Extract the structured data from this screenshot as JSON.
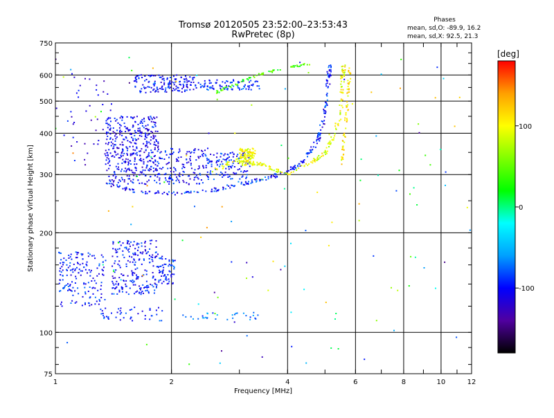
{
  "chart_data": {
    "type": "scatter",
    "title": "Tromsø 20120505 23:52:00–23:53:43",
    "subtitle": "RwPretec (8p)",
    "xlabel": "Frequency [MHz]",
    "ylabel": "Stationary phase Virtual Height [km]",
    "x_scale": "log",
    "y_scale": "log",
    "xlim": [
      1,
      12
    ],
    "ylim": [
      75,
      750
    ],
    "xticks": [
      1,
      2,
      4,
      6,
      8,
      10,
      12
    ],
    "yticks": [
      75,
      100,
      200,
      300,
      400,
      500,
      600,
      750
    ],
    "x_grid": [
      2,
      4,
      6,
      8,
      10
    ],
    "y_grid": [
      100,
      200,
      300,
      400,
      500,
      600
    ],
    "info": {
      "heading": "Phases",
      "line1": "mean, sd,O:  -89.9, 16.2",
      "line2": "mean, sd,X:  92.5, 21.3"
    },
    "colorbar": {
      "label": "[deg]",
      "range": [
        -180,
        180
      ],
      "ticks": [
        100,
        0,
        -100
      ],
      "colors": [
        "#000000",
        "#5000a0",
        "#0000ff",
        "#00a0ff",
        "#00ffff",
        "#00ff00",
        "#80ff00",
        "#ffff00",
        "#ffa000",
        "#ff0000"
      ]
    },
    "clusters": [
      {
        "x": [
          1.02,
          1.35
        ],
        "y": [
          120,
          175
        ],
        "phase": -95,
        "count": 170
      },
      {
        "x": [
          1.4,
          1.85
        ],
        "y": [
          130,
          190
        ],
        "phase": -100,
        "count": 220
      },
      {
        "x": [
          1.85,
          2.05
        ],
        "y": [
          140,
          170
        ],
        "phase": -90,
        "count": 60
      },
      {
        "x": [
          1.3,
          1.9
        ],
        "y": [
          108,
          120
        ],
        "phase": -90,
        "count": 45
      },
      {
        "x": [
          2.1,
          3.6
        ],
        "y": [
          109,
          115
        ],
        "phase": -70,
        "count": 30
      },
      {
        "x": [
          1.35,
          1.85
        ],
        "y": [
          280,
          450
        ],
        "phase": -105,
        "count": 420
      },
      {
        "x": [
          1.85,
          2.5
        ],
        "y": [
          280,
          360
        ],
        "phase": -100,
        "count": 160
      },
      {
        "x": [
          2.5,
          3.2
        ],
        "y": [
          290,
          350
        ],
        "phase": -95,
        "count": 110
      },
      {
        "x": [
          3.0,
          3.3
        ],
        "y": [
          320,
          360
        ],
        "phase": 100,
        "count": 120
      },
      {
        "x": [
          1.6,
          2.3
        ],
        "y": [
          530,
          600
        ],
        "phase": -100,
        "count": 150
      },
      {
        "x": [
          2.3,
          3.4
        ],
        "y": [
          540,
          580
        ],
        "phase": -90,
        "count": 90
      },
      {
        "x": [
          1.1,
          1.4
        ],
        "y": [
          320,
          600
        ],
        "phase": -110,
        "count": 40
      },
      {
        "x": [
          1.0,
          12.0
        ],
        "y": [
          80,
          680
        ],
        "phase": 20,
        "count": 140
      }
    ],
    "traces": [
      {
        "points": [
          [
            1.38,
            280
          ],
          [
            1.6,
            267
          ],
          [
            2.0,
            263
          ],
          [
            2.5,
            268
          ],
          [
            3.0,
            280
          ],
          [
            3.5,
            292
          ],
          [
            4.0,
            305
          ],
          [
            4.4,
            330
          ],
          [
            4.8,
            380
          ],
          [
            5.0,
            460
          ],
          [
            5.1,
            580
          ],
          [
            5.15,
            650
          ]
        ],
        "phase": -95,
        "count": 260,
        "spread": 0.012
      },
      {
        "points": [
          [
            2.6,
            310
          ],
          [
            3.0,
            335
          ],
          [
            3.5,
            320
          ],
          [
            4.0,
            300
          ],
          [
            4.5,
            320
          ],
          [
            5.0,
            350
          ],
          [
            5.3,
            400
          ],
          [
            5.5,
            470
          ],
          [
            5.55,
            580
          ],
          [
            5.6,
            640
          ]
        ],
        "phase": 95,
        "count": 180,
        "spread": 0.012
      },
      {
        "points": [
          [
            5.5,
            320
          ],
          [
            5.65,
            420
          ],
          [
            5.75,
            520
          ],
          [
            5.8,
            640
          ]
        ],
        "phase": 110,
        "count": 60,
        "spread": 0.008
      },
      {
        "points": [
          [
            2.6,
            530
          ],
          [
            3.0,
            570
          ],
          [
            3.5,
            610
          ],
          [
            4.0,
            630
          ],
          [
            4.6,
            650
          ]
        ],
        "phase": 40,
        "count": 70,
        "spread": 0.008
      }
    ]
  }
}
